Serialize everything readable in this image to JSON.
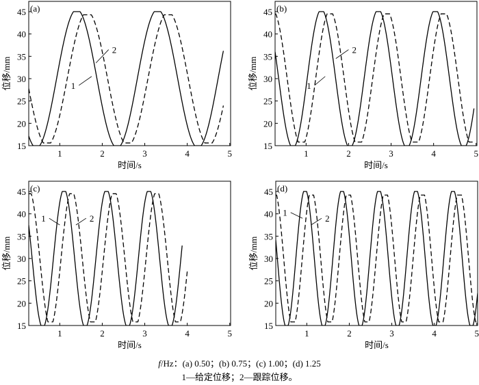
{
  "chart_data": [
    {
      "type": "line",
      "panel_label": "(a)",
      "frequency_hz": 0.5,
      "xlabel": "时间/s",
      "ylabel": "位移/mm",
      "xlim": [
        0.27,
        5.02
      ],
      "ylim": [
        15,
        47.3
      ],
      "xticks": [
        1,
        2,
        3,
        4,
        5
      ],
      "yticks": [
        15,
        20,
        25,
        30,
        35,
        40,
        45
      ],
      "series": [
        {
          "name": "1",
          "label": "给定位移",
          "style": "solid",
          "model": "sinusoid",
          "period": 1.9,
          "peak_time": 1.4,
          "mean": 30,
          "amplitude": 15.5,
          "clip": [
            15,
            45
          ],
          "x_range": [
            0.27,
            4.85
          ]
        },
        {
          "name": "2",
          "label": "跟踪位移",
          "style": "dashed",
          "model": "sinusoid",
          "period": 1.9,
          "peak_time": 1.65,
          "mean": 30,
          "amplitude": 15,
          "clip": [
            15.6,
            44.3
          ],
          "x_range": [
            0.27,
            4.85
          ]
        }
      ],
      "annotations": [
        "1",
        "2"
      ]
    },
    {
      "type": "line",
      "panel_label": "(b)",
      "frequency_hz": 0.75,
      "xlabel": "时间/s",
      "ylabel": "位移/mm",
      "xlim": [
        0.27,
        5.02
      ],
      "ylim": [
        15,
        47.3
      ],
      "xticks": [
        1,
        2,
        3,
        4,
        5
      ],
      "yticks": [
        15,
        20,
        25,
        30,
        35,
        40,
        45
      ],
      "series": [
        {
          "name": "1",
          "label": "给定位移",
          "style": "solid",
          "model": "sinusoid",
          "period": 1.34,
          "peak_time": 1.36,
          "mean": 30,
          "amplitude": 15.5,
          "clip": [
            15,
            45
          ],
          "x_range": [
            0.27,
            4.95
          ]
        },
        {
          "name": "2",
          "label": "跟踪位移",
          "style": "dashed",
          "model": "sinusoid",
          "period": 1.34,
          "peak_time": 1.56,
          "mean": 30,
          "amplitude": 15.2,
          "clip": [
            15.8,
            44.5
          ],
          "x_range": [
            0.27,
            4.95
          ]
        }
      ],
      "annotations": [
        "1",
        "2"
      ]
    },
    {
      "type": "line",
      "panel_label": "(c)",
      "frequency_hz": 1.0,
      "xlabel": "时间/s",
      "ylabel": "位移/mm",
      "xlim": [
        0.27,
        5.02
      ],
      "ylim": [
        15,
        47.3
      ],
      "xticks": [
        1,
        2,
        3,
        4,
        5
      ],
      "yticks": [
        15,
        20,
        25,
        30,
        35,
        40,
        45
      ],
      "series": [
        {
          "name": "1",
          "label": "给定位移",
          "style": "solid",
          "model": "sinusoid",
          "period": 1.0,
          "peak_time": 1.1,
          "mean": 30,
          "amplitude": 15.5,
          "clip": [
            15,
            45
          ],
          "x_range": [
            0.27,
            3.88
          ]
        },
        {
          "name": "2",
          "label": "跟踪位移",
          "style": "dashed",
          "model": "sinusoid",
          "period": 1.0,
          "peak_time": 1.28,
          "mean": 30,
          "amplitude": 15.2,
          "clip": [
            15.8,
            44.5
          ],
          "x_range": [
            0.27,
            4.0
          ]
        }
      ],
      "annotations": [
        "1",
        "2"
      ]
    },
    {
      "type": "line",
      "panel_label": "(d)",
      "frequency_hz": 1.25,
      "xlabel": "时间/s",
      "ylabel": "位移/mm",
      "xlim": [
        0.27,
        5.02
      ],
      "ylim": [
        15,
        47.3
      ],
      "xticks": [
        1,
        2,
        3,
        4,
        5
      ],
      "yticks": [
        15,
        20,
        25,
        30,
        35,
        40,
        45
      ],
      "series": [
        {
          "name": "1",
          "label": "给定位移",
          "style": "solid",
          "model": "sinusoid",
          "period": 0.87,
          "peak_time": 0.96,
          "mean": 30,
          "amplitude": 15.5,
          "clip": [
            15,
            45
          ],
          "x_range": [
            0.27,
            5.02
          ]
        },
        {
          "name": "2",
          "label": "跟踪位移",
          "style": "dashed",
          "model": "sinusoid",
          "period": 0.87,
          "peak_time": 1.11,
          "mean": 30,
          "amplitude": 15.2,
          "clip": [
            15.8,
            44.2
          ],
          "x_range": [
            0.27,
            5.02
          ]
        }
      ],
      "annotations": [
        "1",
        "2"
      ]
    }
  ],
  "caption": {
    "line1_var": "f",
    "line1_rest": "/Hz：(a) 0.50；(b) 0.75；(c) 1.00；(d) 1.25",
    "line2": "1—给定位移；2—跟踪位移。"
  }
}
